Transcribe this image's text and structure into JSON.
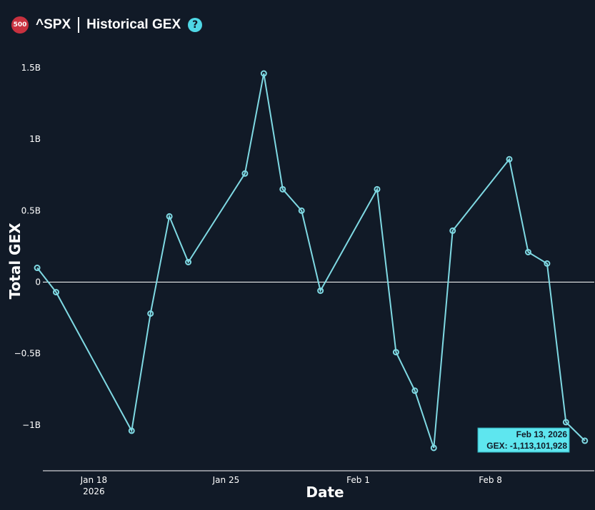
{
  "header": {
    "badge": "500",
    "ticker": "^SPX",
    "title": "Historical GEX",
    "help_glyph": "?"
  },
  "colors": {
    "background": "#111a27",
    "line": "#7fd9e3",
    "tooltip_bg": "#5ee6ef"
  },
  "tooltip": {
    "date": "Feb 13, 2026",
    "value": "GEX: -1,113,101,928"
  },
  "chart_data": {
    "type": "line",
    "xlabel": "Date",
    "ylabel": "Total GEX",
    "x_ticks": [
      {
        "day": 18,
        "label": "Jan 18",
        "sub": "2026"
      },
      {
        "day": 25,
        "label": "Jan 25",
        "sub": ""
      },
      {
        "day": 32,
        "label": "Feb 1",
        "sub": ""
      },
      {
        "day": 39,
        "label": "Feb 8",
        "sub": ""
      }
    ],
    "y_ticks": [
      {
        "value": 1.5,
        "label": "1.5B"
      },
      {
        "value": 1.0,
        "label": "1B"
      },
      {
        "value": 0.5,
        "label": "0.5B"
      },
      {
        "value": 0,
        "label": "0"
      },
      {
        "value": -0.5,
        "label": "−0.5B"
      },
      {
        "value": -1.0,
        "label": "−1B"
      }
    ],
    "ylim": [
      -1.32,
      1.6
    ],
    "xlim": [
      15.3,
      44.5
    ],
    "series": [
      {
        "points": [
          {
            "date": "Jan 15",
            "day": 15,
            "gex_b": 0.1
          },
          {
            "date": "Jan 16",
            "day": 16,
            "gex_b": -0.07
          },
          {
            "date": "Jan 20",
            "day": 20,
            "gex_b": -1.04
          },
          {
            "date": "Jan 21",
            "day": 21,
            "gex_b": -0.22
          },
          {
            "date": "Jan 22",
            "day": 22,
            "gex_b": 0.46
          },
          {
            "date": "Jan 23",
            "day": 23,
            "gex_b": 0.14
          },
          {
            "date": "Jan 26",
            "day": 26,
            "gex_b": 0.76
          },
          {
            "date": "Jan 27",
            "day": 27,
            "gex_b": 1.46
          },
          {
            "date": "Jan 28",
            "day": 28,
            "gex_b": 0.65
          },
          {
            "date": "Jan 29",
            "day": 29,
            "gex_b": 0.5
          },
          {
            "date": "Jan 30",
            "day": 30,
            "gex_b": -0.06
          },
          {
            "date": "Feb 2",
            "day": 33,
            "gex_b": 0.65
          },
          {
            "date": "Feb 3",
            "day": 34,
            "gex_b": -0.49
          },
          {
            "date": "Feb 4",
            "day": 35,
            "gex_b": -0.76
          },
          {
            "date": "Feb 5",
            "day": 36,
            "gex_b": -1.16
          },
          {
            "date": "Feb 6",
            "day": 37,
            "gex_b": 0.36
          },
          {
            "date": "Feb 9",
            "day": 40,
            "gex_b": 0.86
          },
          {
            "date": "Feb 10",
            "day": 41,
            "gex_b": 0.21
          },
          {
            "date": "Feb 11",
            "day": 42,
            "gex_b": 0.13
          },
          {
            "date": "Feb 12",
            "day": 43,
            "gex_b": -0.98
          },
          {
            "date": "Feb 13",
            "day": 44,
            "gex_b": -1.11
          }
        ]
      }
    ]
  }
}
